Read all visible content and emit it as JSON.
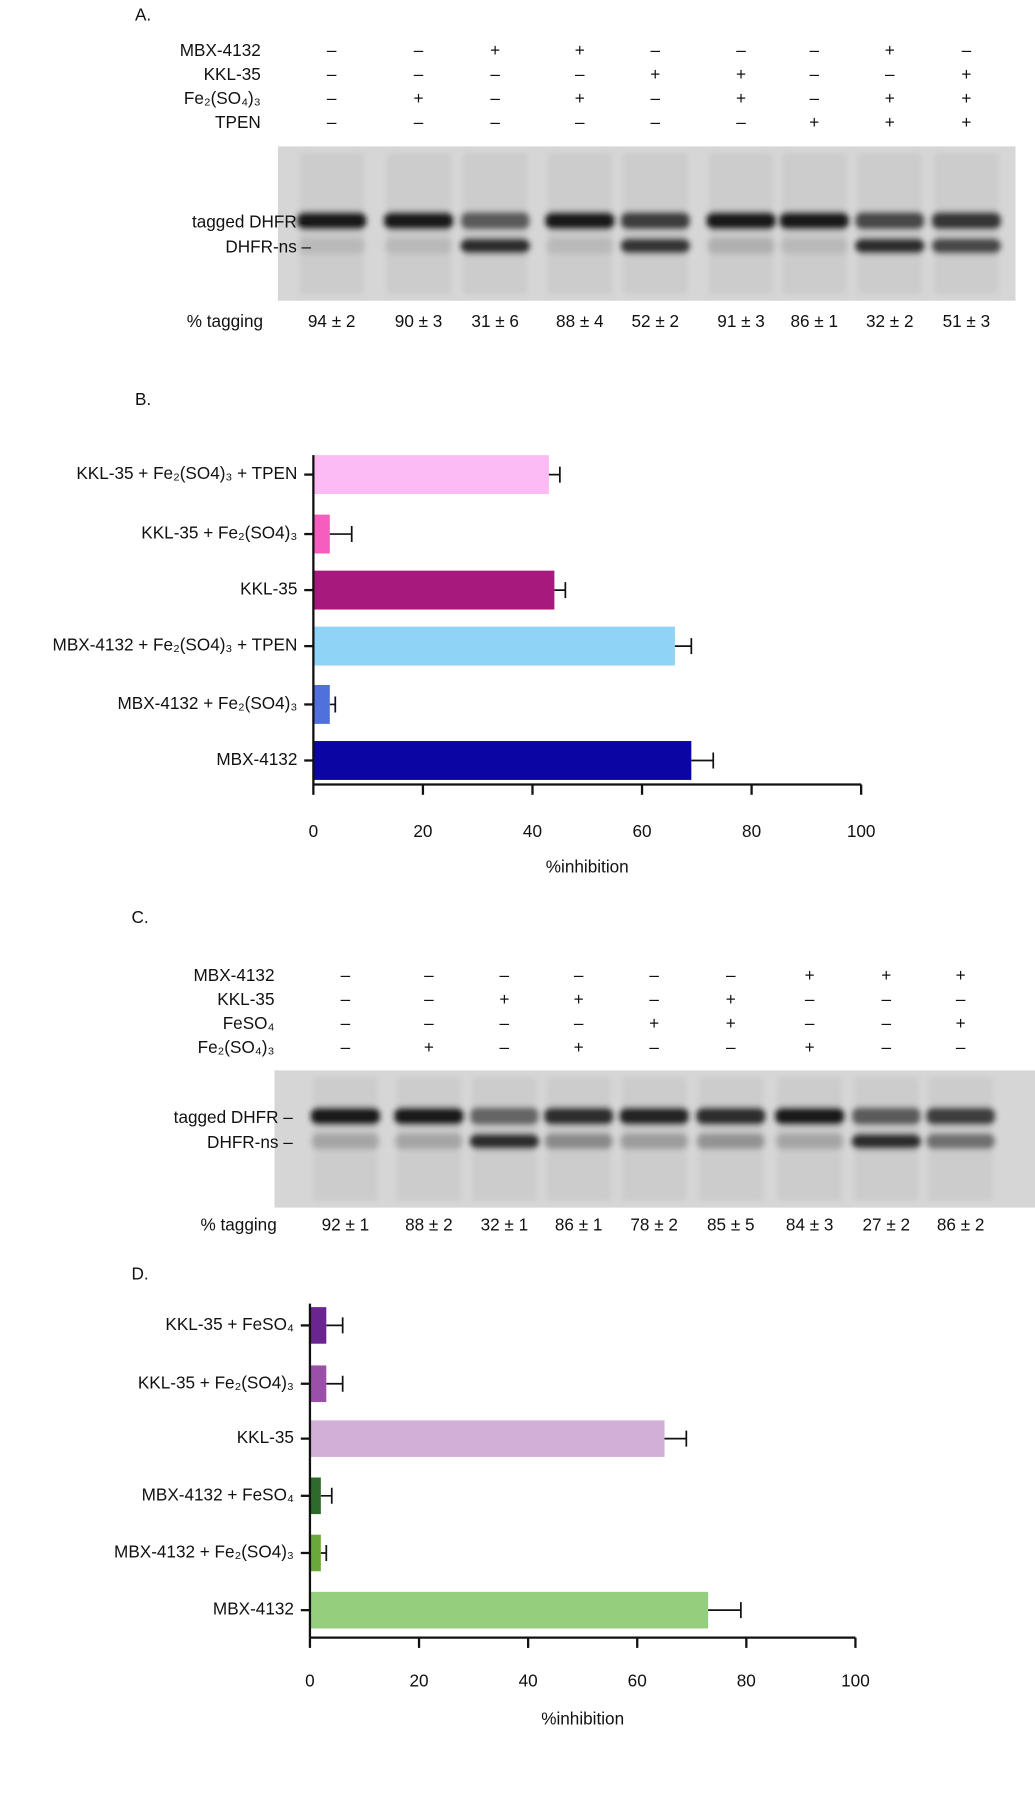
{
  "panel_a": {
    "label": "A.",
    "rows": [
      {
        "name": "MBX-4132",
        "signs": [
          "–",
          "–",
          "+",
          "+",
          "–",
          "–",
          "–",
          "+",
          "–"
        ]
      },
      {
        "name": "KKL-35",
        "signs": [
          "–",
          "–",
          "–",
          "–",
          "+",
          "+",
          "–",
          "–",
          "+"
        ]
      },
      {
        "name": "Fe₂(SO₄)₃",
        "signs": [
          "–",
          "+",
          "–",
          "+",
          "–",
          "+",
          "–",
          "+",
          "+"
        ]
      },
      {
        "name": "TPEN",
        "signs": [
          "–",
          "–",
          "–",
          "–",
          "–",
          "–",
          "+",
          "+",
          "+"
        ]
      }
    ],
    "band_labels": [
      "tagged DHFR –",
      "DHFR-ns –"
    ],
    "tagging_label": "% tagging",
    "tagging": [
      "94 ± 2",
      "90 ± 3",
      "31 ± 6",
      "88 ± 4",
      "52 ± 2",
      "91 ± 3",
      "86 ± 1",
      "32 ± 2",
      "51 ± 3"
    ]
  },
  "chart_data": [
    {
      "type": "bar",
      "label": "B.",
      "orientation": "horizontal",
      "categories": [
        "KKL-35 + Fe₂(SO4)₃ + TPEN",
        "KKL-35 + Fe₂(SO4)₃",
        "KKL-35",
        "MBX-4132 + Fe₂(SO4)₃ + TPEN",
        "MBX-4132 + Fe₂(SO4)₃",
        "MBX-4132"
      ],
      "values": [
        43,
        3,
        44,
        66,
        3,
        69
      ],
      "errors": [
        2,
        4,
        2,
        3,
        1,
        4
      ],
      "colors": [
        "#fdbbf6",
        "#f45fbf",
        "#a8197e",
        "#8fd4f6",
        "#5070dc",
        "#0a05a3"
      ],
      "xlim": [
        0,
        100
      ],
      "xticks": [
        0,
        20,
        40,
        60,
        80,
        100
      ],
      "xlabel": "%inhibition"
    },
    {
      "type": "bar",
      "label": "D.",
      "orientation": "horizontal",
      "categories": [
        "KKL-35 + FeSO₄",
        "KKL-35 +  Fe₂(SO4)₃",
        "KKL-35",
        "MBX-4132 + FeSO₄",
        "MBX-4132 + Fe₂(SO4)₃",
        "MBX-4132"
      ],
      "values": [
        3,
        3,
        65,
        2,
        2,
        73
      ],
      "errors": [
        3,
        3,
        4,
        2,
        1,
        6
      ],
      "colors": [
        "#6b2590",
        "#9b50a8",
        "#d0b0d6",
        "#2e6a2c",
        "#6aa83a",
        "#94cf7d"
      ],
      "xlim": [
        0,
        100
      ],
      "xticks": [
        0,
        20,
        40,
        60,
        80,
        100
      ],
      "xlabel": "%inhibition"
    }
  ],
  "panel_c": {
    "label": "C.",
    "rows": [
      {
        "name": "MBX-4132",
        "signs": [
          "–",
          "–",
          "–",
          "–",
          "–",
          "–",
          "+",
          "+",
          "+"
        ]
      },
      {
        "name": "KKL-35",
        "signs": [
          "–",
          "–",
          "+",
          "+",
          "–",
          "+",
          "–",
          "–",
          "–"
        ]
      },
      {
        "name": "FeSO₄",
        "signs": [
          "–",
          "–",
          "–",
          "–",
          "+",
          "+",
          "–",
          "–",
          "+"
        ]
      },
      {
        "name": "Fe₂(SO₄)₃",
        "signs": [
          "–",
          "+",
          "–",
          "+",
          "–",
          "–",
          "+",
          "–",
          "–"
        ]
      }
    ],
    "band_labels": [
      "tagged DHFR –",
      "DHFR-ns –"
    ],
    "tagging_label": "% tagging",
    "tagging": [
      "92 ± 1",
      "88 ± 2",
      "32 ± 1",
      "86 ± 1",
      "78 ± 2",
      "85 ± 5",
      "84 ± 3",
      "27 ± 2",
      "86 ± 2"
    ]
  }
}
